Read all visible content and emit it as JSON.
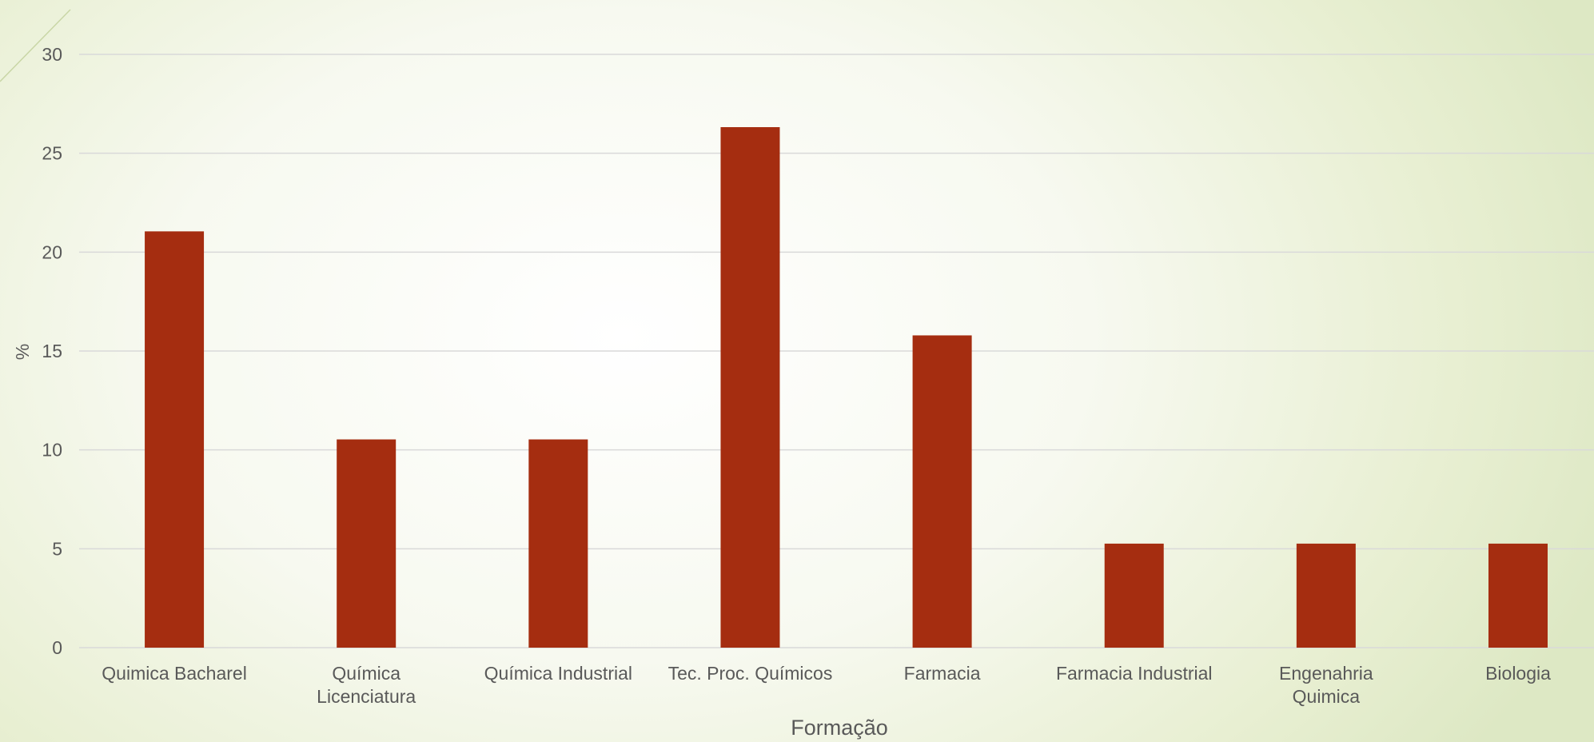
{
  "chart_data": {
    "type": "bar",
    "categories": [
      "Quimica Bacharel",
      "Química Licenciatura",
      "Química Industrial",
      "Tec. Proc. Químicos",
      "Farmacia",
      "Farmacia Industrial",
      "Engenahria Quimica",
      "Biologia"
    ],
    "category_lines": [
      [
        "Quimica Bacharel"
      ],
      [
        "Química",
        "Licenciatura"
      ],
      [
        "Química Industrial"
      ],
      [
        "Tec. Proc. Químicos"
      ],
      [
        "Farmacia"
      ],
      [
        "Farmacia Industrial"
      ],
      [
        "Engenahria",
        "Quimica"
      ],
      [
        "Biologia"
      ]
    ],
    "values": [
      21.05,
      10.53,
      10.53,
      26.32,
      15.79,
      5.26,
      5.26,
      5.26
    ],
    "xlabel": "Formação",
    "ylabel": "%",
    "ylim": [
      0,
      30
    ],
    "yticks": [
      0,
      5,
      10,
      15,
      20,
      25,
      30
    ],
    "grid": true,
    "legend": "none",
    "colors": {
      "bar": "#a52d10",
      "grid": "#d9d9d9",
      "text": "#595959"
    }
  }
}
